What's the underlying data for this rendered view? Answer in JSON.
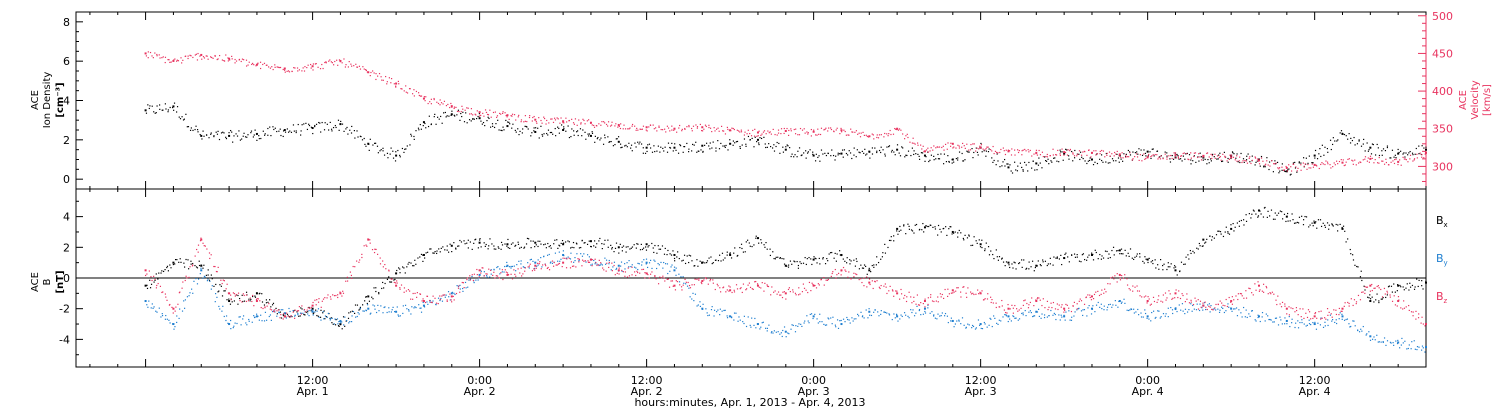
{
  "chart_data": [
    {
      "type": "scatter",
      "panel": "top",
      "ylabel_left": [
        "ACE",
        "Ion Density",
        "[cm⁻³]"
      ],
      "ylabel_right": [
        "ACE",
        "Velocity",
        "[km/s]"
      ],
      "ylim_left": [
        -0.5,
        8.5
      ],
      "yticks_left": [
        0,
        2,
        4,
        6,
        8
      ],
      "ylim_right": [
        270,
        505
      ],
      "yticks_right": [
        300,
        350,
        400,
        450,
        500
      ],
      "series": [
        {
          "name": "",
          "axis": "left",
          "color": "#000000",
          "x": [
            0,
            2,
            4,
            6,
            8,
            10,
            12,
            14,
            16,
            18,
            20,
            22,
            24,
            26,
            28,
            30,
            32,
            34,
            36,
            38,
            40,
            42,
            44,
            46,
            48,
            50,
            52,
            54,
            56,
            58,
            60,
            62,
            64,
            66,
            68,
            70,
            72,
            74,
            76,
            78,
            80,
            82,
            84,
            86,
            88,
            90,
            92
          ],
          "y": [
            3.5,
            3.7,
            2.2,
            2.2,
            2.3,
            2.5,
            2.6,
            2.8,
            1.8,
            1.2,
            2.9,
            3.3,
            3.1,
            2.7,
            2.4,
            2.5,
            2.2,
            1.9,
            1.6,
            1.6,
            1.7,
            1.8,
            2.0,
            1.5,
            1.2,
            1.3,
            1.4,
            1.5,
            1.2,
            1.0,
            1.6,
            0.6,
            0.8,
            1.3,
            1.0,
            1.2,
            1.4,
            1.1,
            1.1,
            1.2,
            1.0,
            0.4,
            1.2,
            2.3,
            1.6,
            1.3,
            1.5
          ]
        },
        {
          "name": "",
          "axis": "right",
          "color": "#e8335f",
          "x": [
            0,
            2,
            4,
            6,
            8,
            10,
            12,
            14,
            16,
            18,
            20,
            22,
            24,
            26,
            28,
            30,
            32,
            34,
            36,
            38,
            40,
            42,
            44,
            46,
            48,
            50,
            52,
            54,
            56,
            58,
            60,
            62,
            64,
            66,
            68,
            70,
            72,
            74,
            76,
            78,
            80,
            82,
            84,
            86,
            88,
            90,
            92
          ],
          "y": [
            450,
            440,
            448,
            443,
            435,
            430,
            433,
            440,
            425,
            410,
            390,
            380,
            372,
            368,
            362,
            360,
            358,
            355,
            352,
            350,
            352,
            348,
            345,
            347,
            346,
            348,
            340,
            350,
            320,
            330,
            325,
            320,
            318,
            319,
            318,
            316,
            312,
            315,
            314,
            312,
            308,
            298,
            302,
            305,
            310,
            306,
            318
          ]
        }
      ]
    },
    {
      "type": "scatter",
      "panel": "bottom",
      "ylabel": [
        "ACE",
        "B",
        "[nT]"
      ],
      "ylim": [
        -5.8,
        5.8
      ],
      "yticks": [
        -4,
        -2,
        0,
        2,
        4
      ],
      "series": [
        {
          "name": "Bx",
          "color": "#000000",
          "x": [
            0,
            2,
            4,
            6,
            8,
            10,
            12,
            14,
            16,
            18,
            20,
            22,
            24,
            26,
            28,
            30,
            32,
            34,
            36,
            38,
            40,
            42,
            44,
            46,
            48,
            50,
            52,
            54,
            56,
            58,
            60,
            62,
            64,
            66,
            68,
            70,
            72,
            74,
            76,
            78,
            80,
            82,
            84,
            86,
            88,
            90,
            92
          ],
          "y": [
            -0.5,
            1.0,
            0.8,
            -1.5,
            -1.0,
            -2.5,
            -2.0,
            -3.0,
            -1.2,
            0.3,
            1.5,
            2.1,
            2.3,
            2.2,
            2.3,
            2.2,
            2.4,
            2.0,
            2.2,
            1.5,
            1.0,
            1.5,
            2.6,
            0.8,
            1.2,
            1.5,
            0.5,
            3.2,
            3.3,
            3.0,
            2.2,
            1.0,
            0.8,
            1.3,
            1.5,
            1.8,
            1.2,
            0.5,
            2.5,
            3.2,
            4.4,
            4.0,
            3.6,
            3.2,
            -1.5,
            -0.5,
            -0.3
          ]
        },
        {
          "name": "By",
          "color": "#1f7fd0",
          "x": [
            0,
            2,
            4,
            6,
            8,
            10,
            12,
            14,
            16,
            18,
            20,
            22,
            24,
            26,
            28,
            30,
            32,
            34,
            36,
            38,
            40,
            42,
            44,
            46,
            48,
            50,
            52,
            54,
            56,
            58,
            60,
            62,
            64,
            66,
            68,
            70,
            72,
            74,
            76,
            78,
            80,
            82,
            84,
            86,
            88,
            90,
            92
          ],
          "y": [
            -1.5,
            -3.0,
            0.5,
            -3.0,
            -2.5,
            -2.3,
            -2.2,
            -2.8,
            -2.0,
            -2.2,
            -1.8,
            -1.0,
            0.2,
            0.8,
            1.0,
            1.5,
            1.2,
            0.8,
            1.0,
            0.5,
            -2.0,
            -2.5,
            -3.0,
            -3.5,
            -2.5,
            -3.0,
            -2.2,
            -2.5,
            -2.0,
            -2.8,
            -3.0,
            -2.5,
            -2.2,
            -2.5,
            -2.0,
            -1.5,
            -2.5,
            -2.0,
            -1.8,
            -2.0,
            -2.5,
            -2.8,
            -3.0,
            -2.5,
            -3.8,
            -4.2,
            -4.5
          ]
        },
        {
          "name": "Bz",
          "color": "#e8335f",
          "x": [
            0,
            2,
            4,
            6,
            8,
            10,
            12,
            14,
            16,
            18,
            20,
            22,
            24,
            26,
            28,
            30,
            32,
            34,
            36,
            38,
            40,
            42,
            44,
            46,
            48,
            50,
            52,
            54,
            56,
            58,
            60,
            62,
            64,
            66,
            68,
            70,
            72,
            74,
            76,
            78,
            80,
            82,
            84,
            86,
            88,
            90,
            92
          ],
          "y": [
            0.5,
            -2.0,
            2.5,
            -1.0,
            -1.5,
            -2.5,
            -1.8,
            -1.0,
            2.5,
            -0.5,
            -1.5,
            -1.2,
            0.5,
            0.2,
            0.8,
            1.0,
            1.2,
            0.5,
            0.3,
            -0.5,
            -0.2,
            -0.8,
            -0.5,
            -1.0,
            -0.5,
            0.5,
            -0.3,
            -1.0,
            -1.5,
            -0.8,
            -1.0,
            -2.0,
            -1.5,
            -2.0,
            -1.2,
            0.2,
            -1.5,
            -1.0,
            -1.8,
            -1.5,
            -0.5,
            -2.0,
            -2.5,
            -2.0,
            -0.5,
            -1.5,
            -3.0
          ]
        }
      ],
      "legend": [
        "Bx",
        "By",
        "Bz"
      ]
    }
  ],
  "xaxis": {
    "xlim": [
      -5,
      92
    ],
    "ticks": [
      {
        "x": 0,
        "hidden": true,
        "time": "",
        "date": ""
      },
      {
        "x": 12,
        "time": "12:00",
        "date": "Apr. 1"
      },
      {
        "x": 24,
        "time": "0:00",
        "date": "Apr. 2"
      },
      {
        "x": 36,
        "time": "12:00",
        "date": "Apr. 2"
      },
      {
        "x": 48,
        "time": "0:00",
        "date": "Apr. 3"
      },
      {
        "x": 60,
        "time": "12:00",
        "date": "Apr. 3"
      },
      {
        "x": 72,
        "time": "0:00",
        "date": "Apr. 4"
      },
      {
        "x": 84,
        "time": "12:00",
        "date": "Apr. 4"
      }
    ],
    "label": "hours:minutes, Apr.  1, 2013 - Apr.  4, 2013"
  },
  "legend_labels": {
    "bx": "B",
    "bx_sub": "x",
    "by": "B",
    "by_sub": "y",
    "bz": "B",
    "bz_sub": "z"
  }
}
